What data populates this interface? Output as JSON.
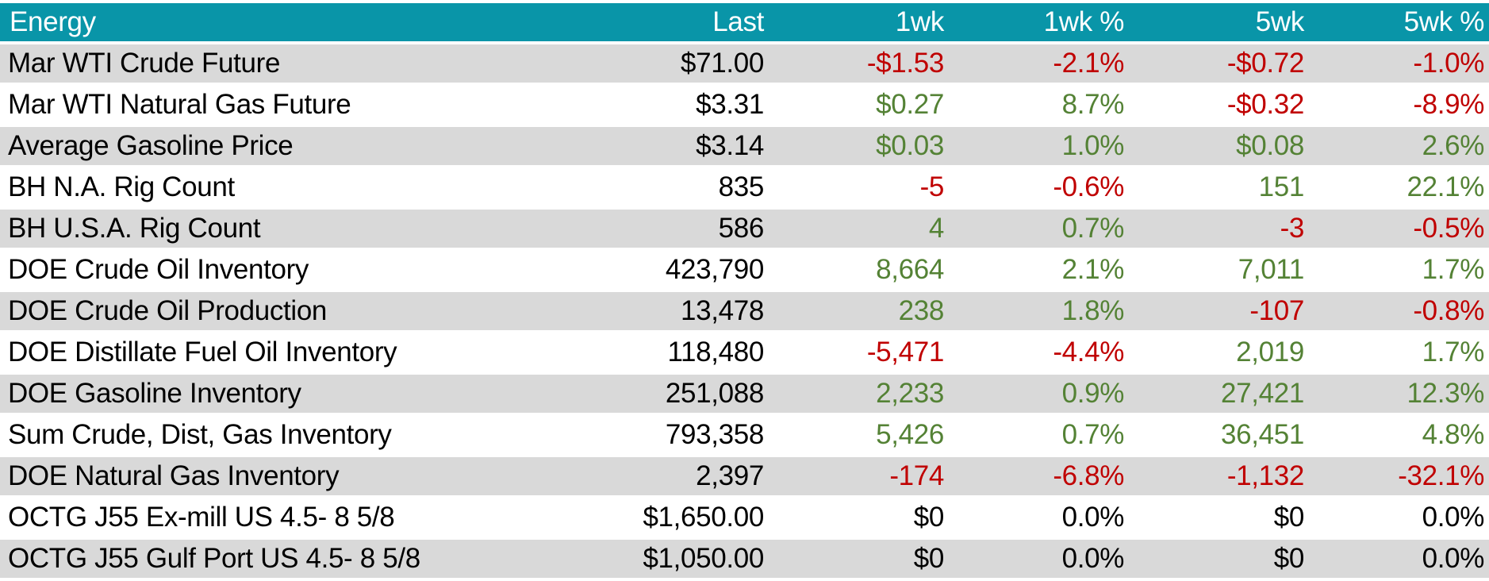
{
  "table": {
    "columns": [
      {
        "key": "energy",
        "label": "Energy"
      },
      {
        "key": "last",
        "label": "Last"
      },
      {
        "key": "1wk",
        "label": "1wk"
      },
      {
        "key": "1wk-pct",
        "label": "1wk %"
      },
      {
        "key": "5wk",
        "label": "5wk"
      },
      {
        "key": "5wk-pct",
        "label": "5wk %"
      }
    ],
    "rows": [
      {
        "name": "Mar WTI Crude Future",
        "cells": [
          {
            "t": "$71.00",
            "c": "neutral"
          },
          {
            "t": "-$1.53",
            "c": "negative"
          },
          {
            "t": "-2.1%",
            "c": "negative"
          },
          {
            "t": "-$0.72",
            "c": "negative"
          },
          {
            "t": "-1.0%",
            "c": "negative"
          }
        ]
      },
      {
        "name": "Mar WTI Natural Gas Future",
        "cells": [
          {
            "t": "$3.31",
            "c": "neutral"
          },
          {
            "t": "$0.27",
            "c": "positive"
          },
          {
            "t": "8.7%",
            "c": "positive"
          },
          {
            "t": "-$0.32",
            "c": "negative"
          },
          {
            "t": "-8.9%",
            "c": "negative"
          }
        ]
      },
      {
        "name": "Average Gasoline Price",
        "cells": [
          {
            "t": "$3.14",
            "c": "neutral"
          },
          {
            "t": "$0.03",
            "c": "positive"
          },
          {
            "t": "1.0%",
            "c": "positive"
          },
          {
            "t": "$0.08",
            "c": "positive"
          },
          {
            "t": "2.6%",
            "c": "positive"
          }
        ]
      },
      {
        "name": "BH N.A. Rig Count",
        "cells": [
          {
            "t": "835",
            "c": "neutral"
          },
          {
            "t": "-5",
            "c": "negative"
          },
          {
            "t": "-0.6%",
            "c": "negative"
          },
          {
            "t": "151",
            "c": "positive"
          },
          {
            "t": "22.1%",
            "c": "positive"
          }
        ]
      },
      {
        "name": "BH U.S.A. Rig Count",
        "cells": [
          {
            "t": "586",
            "c": "neutral"
          },
          {
            "t": "4",
            "c": "positive"
          },
          {
            "t": "0.7%",
            "c": "positive"
          },
          {
            "t": "-3",
            "c": "negative"
          },
          {
            "t": "-0.5%",
            "c": "negative"
          }
        ]
      },
      {
        "name": "DOE Crude Oil Inventory",
        "cells": [
          {
            "t": "423,790",
            "c": "neutral"
          },
          {
            "t": "8,664",
            "c": "positive"
          },
          {
            "t": "2.1%",
            "c": "positive"
          },
          {
            "t": "7,011",
            "c": "positive"
          },
          {
            "t": "1.7%",
            "c": "positive"
          }
        ]
      },
      {
        "name": "DOE Crude Oil Production",
        "cells": [
          {
            "t": "13,478",
            "c": "neutral"
          },
          {
            "t": "238",
            "c": "positive"
          },
          {
            "t": "1.8%",
            "c": "positive"
          },
          {
            "t": "-107",
            "c": "negative"
          },
          {
            "t": "-0.8%",
            "c": "negative"
          }
        ]
      },
      {
        "name": "DOE Distillate Fuel Oil Inventory",
        "cells": [
          {
            "t": "118,480",
            "c": "neutral"
          },
          {
            "t": "-5,471",
            "c": "negative"
          },
          {
            "t": "-4.4%",
            "c": "negative"
          },
          {
            "t": "2,019",
            "c": "positive"
          },
          {
            "t": "1.7%",
            "c": "positive"
          }
        ]
      },
      {
        "name": "DOE Gasoline Inventory",
        "cells": [
          {
            "t": "251,088",
            "c": "neutral"
          },
          {
            "t": "2,233",
            "c": "positive"
          },
          {
            "t": "0.9%",
            "c": "positive"
          },
          {
            "t": "27,421",
            "c": "positive"
          },
          {
            "t": "12.3%",
            "c": "positive"
          }
        ]
      },
      {
        "name": "Sum Crude, Dist, Gas Inventory",
        "cells": [
          {
            "t": "793,358",
            "c": "neutral"
          },
          {
            "t": "5,426",
            "c": "positive"
          },
          {
            "t": "0.7%",
            "c": "positive"
          },
          {
            "t": "36,451",
            "c": "positive"
          },
          {
            "t": "4.8%",
            "c": "positive"
          }
        ]
      },
      {
        "name": "DOE Natural Gas Inventory",
        "cells": [
          {
            "t": "2,397",
            "c": "neutral"
          },
          {
            "t": "-174",
            "c": "negative"
          },
          {
            "t": "-6.8%",
            "c": "negative"
          },
          {
            "t": "-1,132",
            "c": "negative"
          },
          {
            "t": "-32.1%",
            "c": "negative"
          }
        ]
      },
      {
        "name": "OCTG J55 Ex-mill US 4.5- 8 5/8",
        "cells": [
          {
            "t": "$1,650.00",
            "c": "neutral"
          },
          {
            "t": "$0",
            "c": "neutral"
          },
          {
            "t": "0.0%",
            "c": "neutral"
          },
          {
            "t": "$0",
            "c": "neutral"
          },
          {
            "t": "0.0%",
            "c": "neutral"
          }
        ]
      },
      {
        "name": "OCTG J55 Gulf Port US 4.5- 8 5/8",
        "cells": [
          {
            "t": "$1,050.00",
            "c": "neutral"
          },
          {
            "t": "$0",
            "c": "neutral"
          },
          {
            "t": "0.0%",
            "c": "neutral"
          },
          {
            "t": "$0",
            "c": "neutral"
          },
          {
            "t": "0.0%",
            "c": "neutral"
          }
        ]
      }
    ]
  },
  "colors": {
    "header_bg": "#0995A8",
    "header_text": "#FFFFFF",
    "alt_row_bg": "#D9D9D9",
    "row_bg": "#FFFFFF",
    "negative": "#C00000",
    "positive": "#548235",
    "neutral": "#000000"
  },
  "chart_data": {
    "type": "table",
    "title": "Energy",
    "columns": [
      "Energy",
      "Last",
      "1wk",
      "1wk %",
      "5wk",
      "5wk %"
    ],
    "rows": [
      [
        "Mar WTI Crude Future",
        "$71.00",
        "-$1.53",
        "-2.1%",
        "-$0.72",
        "-1.0%"
      ],
      [
        "Mar WTI Natural Gas Future",
        "$3.31",
        "$0.27",
        "8.7%",
        "-$0.32",
        "-8.9%"
      ],
      [
        "Average Gasoline Price",
        "$3.14",
        "$0.03",
        "1.0%",
        "$0.08",
        "2.6%"
      ],
      [
        "BH N.A. Rig Count",
        "835",
        "-5",
        "-0.6%",
        "151",
        "22.1%"
      ],
      [
        "BH U.S.A. Rig Count",
        "586",
        "4",
        "0.7%",
        "-3",
        "-0.5%"
      ],
      [
        "DOE Crude Oil Inventory",
        "423,790",
        "8,664",
        "2.1%",
        "7,011",
        "1.7%"
      ],
      [
        "DOE Crude Oil Production",
        "13,478",
        "238",
        "1.8%",
        "-107",
        "-0.8%"
      ],
      [
        "DOE Distillate Fuel Oil Inventory",
        "118,480",
        "-5,471",
        "-4.4%",
        "2,019",
        "1.7%"
      ],
      [
        "DOE Gasoline Inventory",
        "251,088",
        "2,233",
        "0.9%",
        "27,421",
        "12.3%"
      ],
      [
        "Sum Crude, Dist, Gas Inventory",
        "793,358",
        "5,426",
        "0.7%",
        "36,451",
        "4.8%"
      ],
      [
        "DOE Natural Gas Inventory",
        "2,397",
        "-174",
        "-6.8%",
        "-1,132",
        "-32.1%"
      ],
      [
        "OCTG J55 Ex-mill US 4.5- 8 5/8",
        "$1,650.00",
        "$0",
        "0.0%",
        "$0",
        "0.0%"
      ],
      [
        "OCTG J55 Gulf Port US 4.5- 8 5/8",
        "$1,050.00",
        "$0",
        "0.0%",
        "$0",
        "0.0%"
      ]
    ]
  }
}
